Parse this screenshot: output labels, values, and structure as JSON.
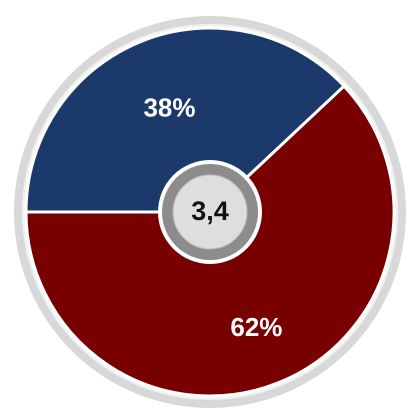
{
  "chart_data": {
    "type": "pie",
    "categories": [
      null,
      null
    ],
    "values": [
      38,
      62
    ],
    "value_labels": [
      "38%",
      "62%"
    ],
    "colors": [
      "#1b3a6b",
      "#780000"
    ],
    "startangle": 270,
    "counterclock": false,
    "center_label": "3,4"
  }
}
